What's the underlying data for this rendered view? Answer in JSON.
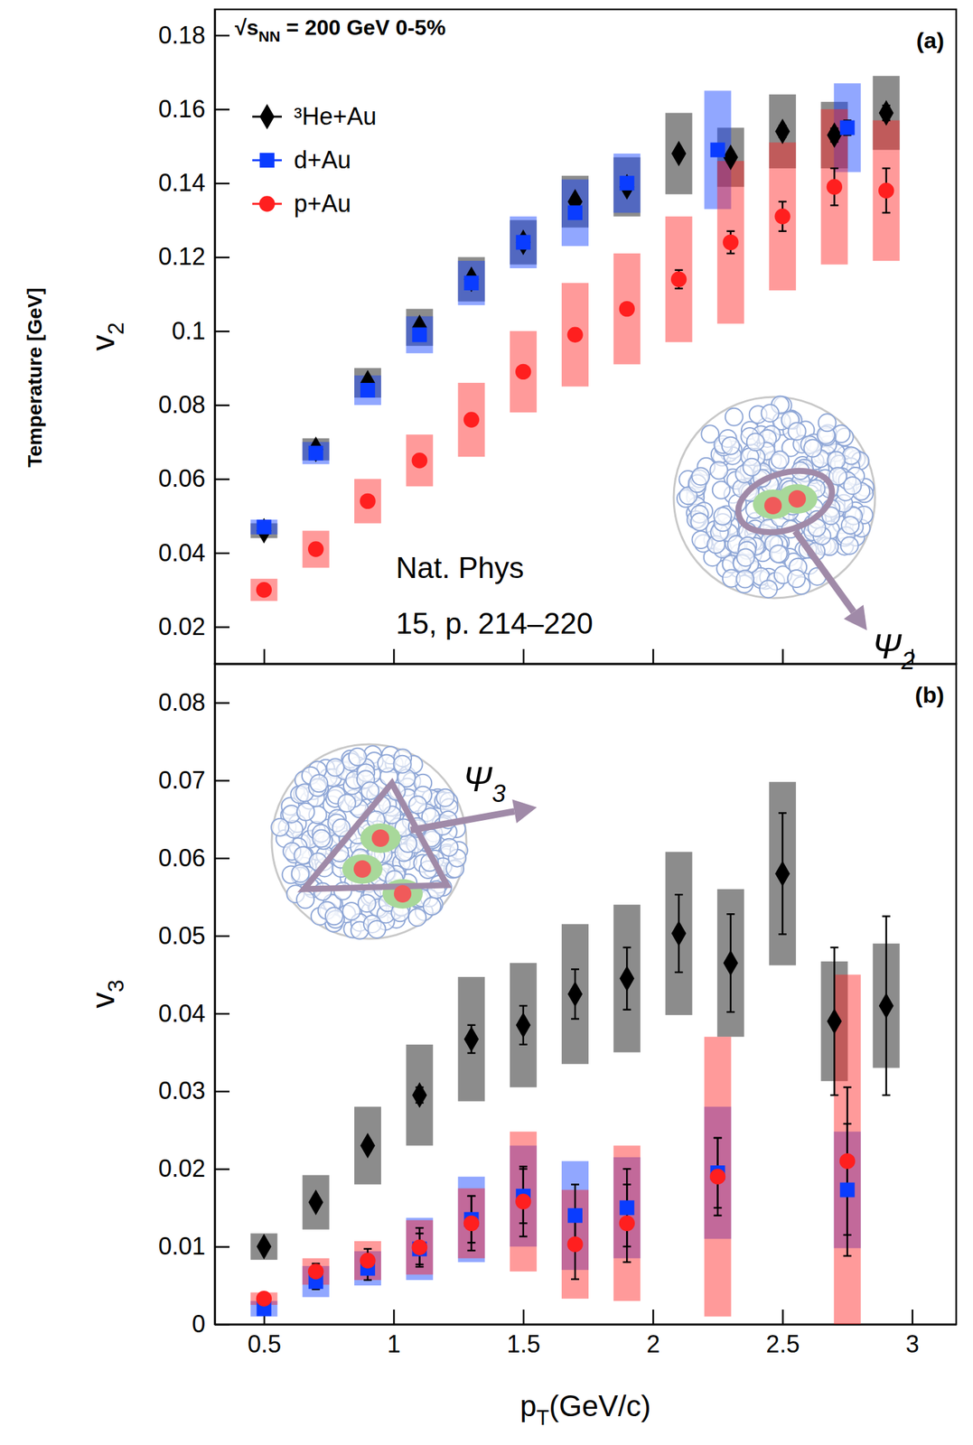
{
  "chart_data": [
    {
      "type": "scatter",
      "title": "√sNN = 200 GeV 0-5%",
      "panel_label": "(a)",
      "y_label": "v2",
      "annotations": [
        "Temperature [GeV]",
        "Nat. Phys",
        "15, p. 214–220",
        "Ψ2"
      ],
      "xlim": [
        0.31,
        3.17
      ],
      "ylim": [
        0.01,
        0.187
      ],
      "xticks": [
        0.5,
        1,
        1.5,
        2,
        2.5,
        3
      ],
      "yticks": [
        0.02,
        0.04,
        0.06,
        0.08,
        0.1,
        0.12,
        0.14,
        0.16,
        0.18
      ],
      "tick_labels": "y",
      "legend": "top-left",
      "series": [
        {
          "name": "³He+Au",
          "color": "#000000",
          "marker": "diamond",
          "x": [
            0.5,
            0.7,
            0.9,
            1.1,
            1.3,
            1.5,
            1.7,
            1.9,
            2.1,
            2.3,
            2.5,
            2.7,
            2.9
          ],
          "values": [
            0.046,
            0.068,
            0.086,
            0.101,
            0.114,
            0.124,
            0.135,
            0.139,
            0.148,
            0.147,
            0.154,
            0.153,
            0.159
          ],
          "errors": [
            0.0005,
            0.0005,
            0.0005,
            0.0005,
            0.0006,
            0.0007,
            0.0008,
            0.001,
            0.0012,
            0.0014,
            0.0016,
            0.0018,
            0.002
          ],
          "sys_errors": [
            0.002,
            0.003,
            0.004,
            0.005,
            0.006,
            0.006,
            0.007,
            0.008,
            0.011,
            0.008,
            0.01,
            0.009,
            0.01
          ]
        },
        {
          "name": "d+Au",
          "color": "#0a3cff",
          "marker": "square",
          "x": [
            0.5,
            0.7,
            0.9,
            1.1,
            1.3,
            1.5,
            1.7,
            1.9,
            2.25,
            2.75
          ],
          "values": [
            0.047,
            0.067,
            0.084,
            0.099,
            0.113,
            0.124,
            0.132,
            0.14,
            0.149,
            0.155
          ],
          "errors": [
            0.0005,
            0.0005,
            0.0006,
            0.0007,
            0.0008,
            0.0009,
            0.001,
            0.0012,
            0.0015,
            0.002
          ],
          "sys_errors": [
            0.002,
            0.003,
            0.004,
            0.005,
            0.006,
            0.007,
            0.009,
            0.008,
            0.016,
            0.012
          ]
        },
        {
          "name": "p+Au",
          "color": "#ff1f1f",
          "marker": "circle",
          "x": [
            0.5,
            0.7,
            0.9,
            1.1,
            1.3,
            1.5,
            1.7,
            1.9,
            2.1,
            2.3,
            2.5,
            2.7,
            2.9
          ],
          "values": [
            0.03,
            0.041,
            0.054,
            0.065,
            0.076,
            0.089,
            0.099,
            0.106,
            0.114,
            0.124,
            0.131,
            0.139,
            0.138
          ],
          "errors": [
            0.0005,
            0.0005,
            0.0006,
            0.0007,
            0.0008,
            0.001,
            0.0012,
            0.0015,
            0.0025,
            0.003,
            0.004,
            0.005,
            0.006
          ],
          "sys_errors": [
            0.003,
            0.005,
            0.006,
            0.007,
            0.01,
            0.011,
            0.014,
            0.015,
            0.017,
            0.022,
            0.02,
            0.021,
            0.019
          ]
        }
      ]
    },
    {
      "type": "scatter",
      "panel_label": "(b)",
      "y_label": "v3",
      "x_label": "pT(GeV/c)",
      "annotations": [
        "Ψ3"
      ],
      "xlim": [
        0.31,
        3.17
      ],
      "ylim": [
        0,
        0.085
      ],
      "xticks": [
        0.5,
        1,
        1.5,
        2,
        2.5,
        3
      ],
      "yticks": [
        0,
        0.01,
        0.02,
        0.03,
        0.04,
        0.05,
        0.06,
        0.07,
        0.08
      ],
      "series": [
        {
          "name": "³He+Au",
          "color": "#000000",
          "marker": "diamond",
          "x": [
            0.5,
            0.7,
            0.9,
            1.1,
            1.3,
            1.5,
            1.7,
            1.9,
            2.1,
            2.3,
            2.5,
            2.7,
            2.9
          ],
          "values": [
            0.01,
            0.0157,
            0.023,
            0.0295,
            0.0367,
            0.0385,
            0.0425,
            0.0445,
            0.0503,
            0.0465,
            0.058,
            0.039,
            0.041
          ],
          "errors": [
            0.0005,
            0.0005,
            0.0007,
            0.001,
            0.0018,
            0.0025,
            0.0032,
            0.004,
            0.005,
            0.0063,
            0.0078,
            0.0095,
            0.0115
          ],
          "sys_errors": [
            0.0017,
            0.0035,
            0.005,
            0.0065,
            0.008,
            0.008,
            0.009,
            0.0095,
            0.0105,
            0.0095,
            0.0118,
            0.0077,
            0.008
          ]
        },
        {
          "name": "d+Au",
          "color": "#0a3cff",
          "marker": "square",
          "x": [
            0.5,
            0.7,
            0.9,
            1.1,
            1.3,
            1.5,
            1.7,
            1.9,
            2.25,
            2.75
          ],
          "values": [
            0.002,
            0.0055,
            0.0072,
            0.0097,
            0.0135,
            0.0165,
            0.014,
            0.015,
            0.0195,
            0.0173
          ],
          "errors": [
            0.0005,
            0.001,
            0.0015,
            0.002,
            0.003,
            0.0035,
            0.004,
            0.005,
            0.0045,
            0.0085
          ],
          "sys_errors": [
            0.001,
            0.002,
            0.0022,
            0.004,
            0.0055,
            0.0065,
            0.007,
            0.0065,
            0.0085,
            0.0075
          ]
        },
        {
          "name": "p+Au",
          "color": "#ff1f1f",
          "marker": "circle",
          "x": [
            0.5,
            0.7,
            0.9,
            1.1,
            1.3,
            1.5,
            1.7,
            1.9,
            2.25,
            2.75
          ],
          "values": [
            0.0033,
            0.0068,
            0.0082,
            0.0099,
            0.013,
            0.0158,
            0.0103,
            0.013,
            0.019,
            0.021
          ],
          "errors": [
            0.0005,
            0.001,
            0.0015,
            0.0025,
            0.0035,
            0.0045,
            0.0045,
            0.005,
            0.005,
            0.0095
          ],
          "sys_errors": [
            0.0008,
            0.0017,
            0.0025,
            0.0035,
            0.0045,
            0.009,
            0.007,
            0.01,
            0.018,
            0.024
          ]
        }
      ]
    }
  ]
}
